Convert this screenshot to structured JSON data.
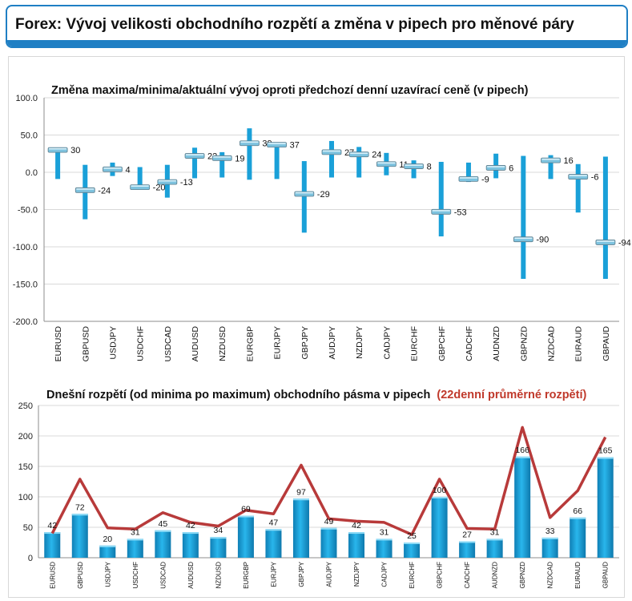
{
  "header": {
    "title": "Forex: Vývoj velikosti obchodního rozpětí a změna v pipech pro měnové páry"
  },
  "colors": {
    "accent": "#1f7fc4",
    "bar": "#1aa0d8",
    "line": "#b83a3a",
    "highlight": "#c0392b"
  },
  "chart_data": [
    {
      "type": "range",
      "title": "Změna maxima/minima/aktuální vývoj oproti předchozí denní uzavírací ceně (v pipech)",
      "ylim": [
        -200,
        100
      ],
      "yticks": [
        "100.0",
        "50.0",
        "0.0",
        "-50.0",
        "-100.0",
        "-150.0",
        "-200.0"
      ],
      "grid": true,
      "categories": [
        "EURUSD",
        "GBPUSD",
        "USDJPY",
        "USDCHF",
        "USDCAD",
        "AUDUSD",
        "NZDUSD",
        "EURGBP",
        "EURJPY",
        "GBPJPY",
        "AUDJPY",
        "NZDJPY",
        "CADJPY",
        "EURCHF",
        "GBPCHF",
        "CADCHF",
        "AUDNZD",
        "GBPNZD",
        "NZDCAD",
        "EURAUD",
        "GBPAUD"
      ],
      "high": [
        30,
        10,
        13,
        7,
        10,
        33,
        27,
        59,
        40,
        15,
        42,
        34,
        26,
        16,
        14,
        13,
        25,
        22,
        23,
        11,
        21
      ],
      "low": [
        -9,
        -63,
        -5,
        -23,
        -34,
        -8,
        -7,
        -10,
        -9,
        -81,
        -7,
        -7,
        -4,
        -8,
        -86,
        -13,
        -8,
        -143,
        -9,
        -54,
        -143
      ],
      "current": [
        30,
        -24,
        4,
        -20,
        -13,
        22,
        19,
        39,
        37,
        -29,
        27,
        24,
        11,
        8,
        -53,
        -9,
        6,
        -90,
        16,
        -6,
        -94
      ],
      "labels": [
        "30",
        "-24",
        "4",
        "-20",
        "-13",
        "22",
        "19",
        "39",
        "37",
        "-29",
        "27",
        "24",
        "11",
        "8",
        "-53",
        "-9",
        "6",
        "-90",
        "16",
        "-6",
        "-94"
      ]
    },
    {
      "type": "bar",
      "title": "Dnešní rozpětí (od minima po maximum) obchodního pásma v pipech",
      "title_highlight": "(22denní průměrné rozpětí)",
      "ylim": [
        0,
        250
      ],
      "yticks": [
        "250",
        "200",
        "150",
        "100",
        "50",
        "0"
      ],
      "categories": [
        "EURUSD",
        "GBPUSD",
        "USDJPY",
        "USDCHF",
        "USDCAD",
        "AUDUSD",
        "NZDUSD",
        "EURGBP",
        "EURJPY",
        "GBPJPY",
        "AUDJPY",
        "NZDJPY",
        "CADJPY",
        "EURCHF",
        "GBPCHF",
        "CADCHF",
        "AUDNZD",
        "GBPNZD",
        "NZDCAD",
        "EURAUD",
        "GBPAUD"
      ],
      "series": [
        {
          "values": [
            42,
            72,
            20,
            31,
            45,
            42,
            34,
            69,
            47,
            97,
            49,
            42,
            31,
            25,
            100,
            27,
            31,
            166,
            33,
            66,
            165
          ],
          "labels": [
            "42",
            "72",
            "20",
            "31",
            "45",
            "42",
            "34",
            "69",
            "47",
            "97",
            "49",
            "42",
            "31",
            "25",
            "100",
            "27",
            "31",
            "166",
            "33",
            "66",
            "165"
          ]
        },
        {
          "type": "line",
          "values": [
            40,
            129,
            49,
            47,
            74,
            58,
            52,
            78,
            72,
            152,
            64,
            60,
            58,
            38,
            129,
            48,
            47,
            214,
            66,
            110,
            198
          ]
        }
      ]
    }
  ]
}
